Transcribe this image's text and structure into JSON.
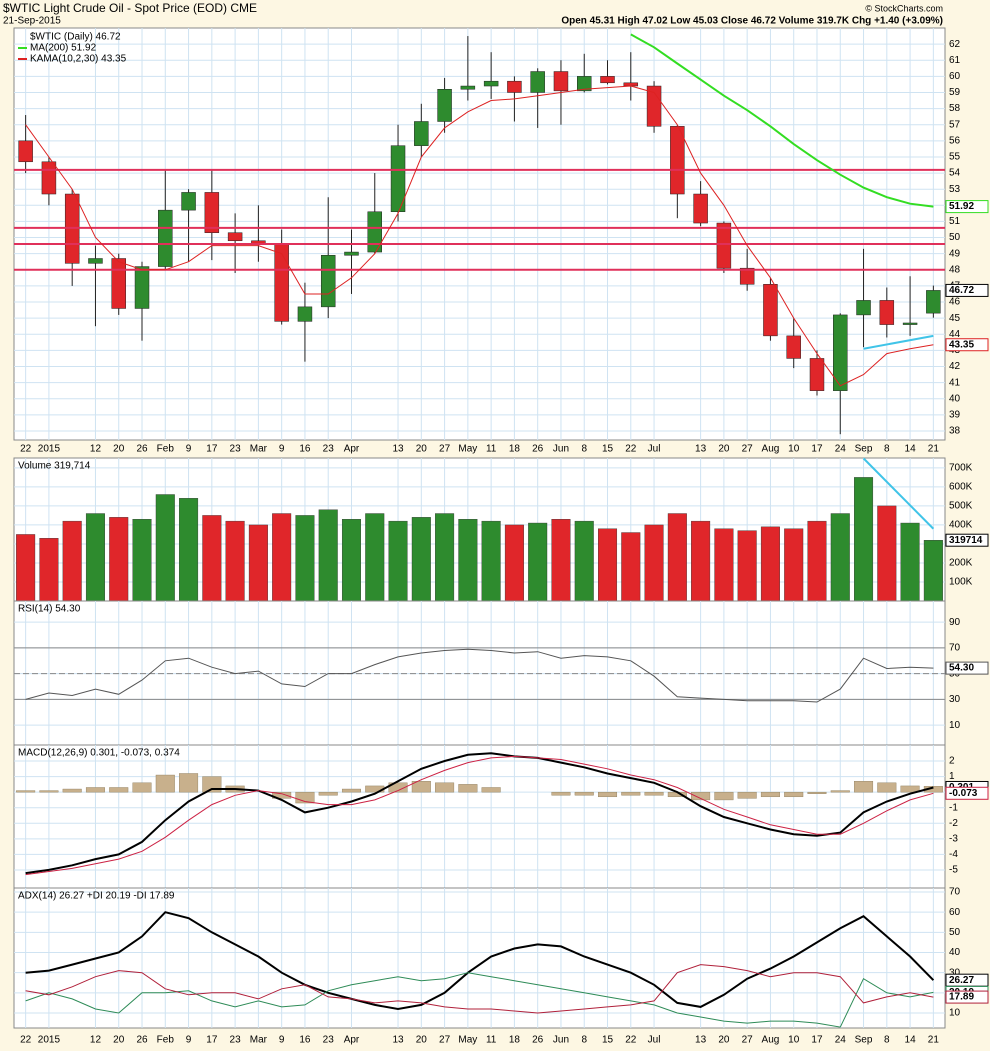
{
  "chart_data": [
    {
      "type": "candlestick",
      "title": "$WTIC Light Crude Oil - Spot Price (EOD) CME",
      "date": "21-Sep-2015",
      "quote": "Open 45.31 High 47.02 Low 45.03 Close 46.72 Volume 319.7K Chg +1.40 (+3.09%)",
      "credit": "© StockCharts.com",
      "price_name": "$WTIC (Daily) 46.72",
      "categories": [
        "22",
        "2015",
        null,
        "12",
        "20",
        "26",
        "Feb",
        "9",
        "17",
        "23",
        "Mar",
        "9",
        "16",
        "23",
        "Apr",
        null,
        "13",
        "20",
        "27",
        "May",
        "11",
        "18",
        "26",
        "Jun",
        "8",
        "15",
        "22",
        "Jul",
        null,
        "13",
        "20",
        "27",
        "Aug",
        "10",
        "17",
        "24",
        "Sep",
        "8",
        "14",
        "21"
      ],
      "open": [
        56.0,
        54.7,
        52.7,
        48.4,
        48.7,
        45.6,
        48.2,
        51.7,
        52.8,
        50.3,
        49.8,
        49.6,
        44.8,
        45.7,
        48.9,
        49.1,
        51.6,
        55.7,
        57.2,
        59.2,
        59.4,
        59.7,
        59.0,
        60.3,
        59.1,
        60.0,
        59.6,
        59.4,
        56.9,
        52.7,
        50.9,
        48.1,
        47.1,
        43.9,
        42.5,
        40.5,
        45.2,
        46.1,
        44.6,
        45.31
      ],
      "high": [
        57.6,
        55.0,
        53.0,
        49.5,
        49.0,
        48.5,
        54.2,
        53.0,
        54.2,
        51.5,
        52.0,
        50.5,
        47.2,
        52.5,
        50.5,
        54.0,
        57.0,
        58.3,
        59.9,
        62.5,
        61.5,
        60.0,
        60.5,
        61.0,
        61.4,
        61.0,
        61.5,
        59.7,
        57.0,
        53.5,
        51.0,
        49.3,
        47.5,
        45.0,
        43.0,
        45.3,
        49.3,
        46.9,
        47.6,
        47.02
      ],
      "low": [
        54.0,
        52.0,
        47.0,
        44.5,
        45.2,
        43.6,
        48.0,
        48.5,
        48.6,
        47.8,
        48.5,
        44.6,
        42.3,
        45.0,
        46.5,
        49.0,
        51.0,
        55.0,
        56.5,
        58.5,
        58.6,
        57.2,
        56.8,
        57.0,
        59.0,
        59.5,
        58.5,
        56.5,
        51.2,
        50.7,
        47.8,
        46.7,
        43.6,
        41.9,
        40.2,
        37.8,
        43.2,
        43.8,
        43.9,
        45.03
      ],
      "close": [
        54.7,
        52.7,
        48.4,
        48.7,
        45.6,
        48.2,
        51.7,
        52.8,
        50.3,
        49.8,
        49.6,
        44.8,
        45.7,
        48.9,
        49.1,
        51.6,
        55.7,
        57.2,
        59.2,
        59.4,
        59.7,
        59.0,
        60.3,
        59.1,
        60.0,
        59.6,
        59.4,
        56.9,
        52.7,
        50.9,
        48.1,
        47.1,
        43.9,
        42.5,
        40.5,
        45.2,
        46.1,
        44.6,
        44.7,
        46.72
      ],
      "up_color": "#2e8b2e",
      "down_color": "#e0262a",
      "series": [
        {
          "name": "MA(200) 51.92",
          "color": "#33dd22",
          "values": [
            null,
            null,
            null,
            null,
            null,
            null,
            null,
            null,
            null,
            null,
            null,
            null,
            null,
            null,
            null,
            null,
            null,
            null,
            null,
            null,
            null,
            null,
            null,
            null,
            null,
            null,
            62.6,
            61.8,
            60.8,
            59.8,
            58.8,
            57.9,
            56.9,
            55.8,
            54.8,
            53.9,
            53.1,
            52.5,
            52.1,
            51.92
          ]
        },
        {
          "name": "KAMA(10,2,30) 43.35",
          "color": "#dd2222",
          "values": [
            57,
            55,
            53,
            50,
            48.5,
            48,
            48,
            48.5,
            49.5,
            49.5,
            49.5,
            49,
            46.5,
            46.5,
            47.5,
            49,
            51.5,
            55,
            56.8,
            57.8,
            58.5,
            58.6,
            58.8,
            59,
            59.2,
            59.3,
            59.4,
            59,
            57,
            54,
            52,
            49.5,
            47.5,
            45,
            42.8,
            40.8,
            41.5,
            42.8,
            43.1,
            43.35
          ]
        }
      ],
      "hlines": {
        "color": "#e0305a",
        "values": [
          54.2,
          50.6,
          49.6,
          48.0
        ]
      },
      "trendline": {
        "color": "#40c4e8",
        "values": [
          null,
          null,
          null,
          null,
          null,
          null,
          null,
          null,
          null,
          null,
          null,
          null,
          null,
          null,
          null,
          null,
          null,
          null,
          null,
          null,
          null,
          null,
          null,
          null,
          null,
          null,
          null,
          null,
          null,
          null,
          null,
          null,
          null,
          null,
          null,
          null,
          43.1,
          null,
          null,
          43.9
        ]
      },
      "ylim": [
        37.44,
        63
      ],
      "yticks": [
        38,
        39,
        40,
        41,
        42,
        43,
        44,
        45,
        46,
        47,
        48,
        49,
        50,
        51,
        52,
        53,
        54,
        55,
        56,
        57,
        58,
        59,
        60,
        61,
        62
      ]
    },
    {
      "type": "bar",
      "label": "Volume 319,714",
      "values": [
        350000,
        330000,
        420000,
        460000,
        440000,
        430000,
        560000,
        540000,
        450000,
        420000,
        400000,
        460000,
        450000,
        480000,
        430000,
        460000,
        420000,
        440000,
        460000,
        430000,
        420000,
        400000,
        410000,
        430000,
        420000,
        380000,
        360000,
        400000,
        460000,
        420000,
        380000,
        370000,
        390000,
        380000,
        420000,
        460000,
        650000,
        500000,
        410000,
        319714
      ],
      "trendline": {
        "color": "#40c4e8",
        "values": [
          null,
          null,
          null,
          null,
          null,
          null,
          null,
          null,
          null,
          null,
          null,
          null,
          null,
          null,
          null,
          null,
          null,
          null,
          null,
          null,
          null,
          null,
          null,
          null,
          null,
          null,
          null,
          null,
          null,
          null,
          null,
          null,
          null,
          null,
          null,
          null,
          750000,
          null,
          null,
          380000
        ]
      },
      "ylim": [
        0,
        752000
      ],
      "yticks": [
        {
          "value": 100000,
          "label": "100K"
        },
        {
          "value": 200000,
          "label": "200K"
        },
        {
          "value": 300000,
          "label": "300K"
        },
        {
          "value": 400000,
          "label": "400K"
        },
        {
          "value": 500000,
          "label": "500K"
        },
        {
          "value": 600000,
          "label": "600K"
        },
        {
          "value": 700000,
          "label": "700K"
        }
      ]
    },
    {
      "type": "line",
      "label": "RSI(14) 54.30",
      "levels": [
        30,
        50,
        70
      ],
      "series": [
        {
          "color": "#555555",
          "tag": "54.30",
          "values": [
            30,
            35,
            33,
            38,
            34,
            45,
            60,
            62,
            55,
            50,
            52,
            42,
            40,
            50,
            50,
            57,
            63,
            66,
            68,
            69,
            68,
            66,
            67,
            62,
            64,
            63,
            60,
            48,
            32,
            31,
            30,
            29,
            29,
            29,
            28,
            38,
            62,
            54,
            55,
            54.3
          ]
        }
      ],
      "ylim": [
        -5.4,
        106.4
      ],
      "yticks": [
        10,
        30,
        50,
        70,
        90
      ]
    },
    {
      "type": "macd",
      "label": "MACD(12,26,9) 0.301, -0.073, 0.374",
      "histogram": {
        "color": "#c8b08c",
        "values": [
          0.1,
          0.1,
          0.2,
          0.3,
          0.3,
          0.6,
          1.1,
          1.2,
          1.0,
          0.4,
          0,
          -0.4,
          -0.7,
          -0.2,
          0.2,
          0.4,
          0.6,
          0.7,
          0.6,
          0.5,
          0.3,
          0,
          0,
          -0.2,
          -0.2,
          -0.3,
          -0.2,
          -0.2,
          -0.3,
          -0.5,
          -0.5,
          -0.4,
          -0.3,
          -0.3,
          -0.1,
          0.1,
          0.7,
          0.6,
          0.4,
          0.374
        ]
      },
      "series": [
        {
          "color": "#000000",
          "values": [
            -5.2,
            -5,
            -4.7,
            -4.3,
            -4,
            -3.2,
            -1.8,
            -0.6,
            0.2,
            0.2,
            0.1,
            -0.5,
            -1.3,
            -1,
            -0.6,
            -0.1,
            0.7,
            1.5,
            2,
            2.4,
            2.5,
            2.3,
            2.2,
            1.9,
            1.6,
            1.2,
            0.9,
            0.6,
            0,
            -0.9,
            -1.6,
            -2,
            -2.4,
            -2.7,
            -2.8,
            -2.6,
            -1.3,
            -0.6,
            -0.1,
            0.301
          ]
        },
        {
          "color": "#cc2244",
          "values": [
            -5.3,
            -5.1,
            -4.9,
            -4.6,
            -4.3,
            -3.8,
            -2.9,
            -1.8,
            -0.8,
            -0.2,
            0.1,
            -0.1,
            -0.6,
            -0.8,
            -0.8,
            -0.5,
            0.1,
            0.8,
            1.4,
            1.9,
            2.2,
            2.3,
            2.2,
            2.1,
            1.8,
            1.5,
            1.1,
            0.8,
            0.3,
            -0.4,
            -1.1,
            -1.6,
            -2.1,
            -2.4,
            -2.7,
            -2.7,
            -2,
            -1.2,
            -0.5,
            -0.073
          ]
        }
      ],
      "ylim": [
        -6.16,
        3.03
      ],
      "yticks": [
        -5,
        -4,
        -3,
        -2,
        -1,
        0,
        1,
        2
      ]
    },
    {
      "type": "line",
      "label": "ADX(14) 26.27 +DI 20.19 -DI 17.89",
      "series": [
        {
          "color": "#000000",
          "values": [
            30,
            31,
            34,
            37,
            40,
            48,
            60,
            57,
            50,
            44,
            38,
            30,
            24,
            20,
            17,
            14,
            12,
            14,
            20,
            30,
            38,
            42,
            44,
            43,
            38,
            34,
            30,
            24,
            15,
            13,
            19,
            27,
            32,
            38,
            45,
            52,
            58,
            48,
            38,
            26.27
          ]
        },
        {
          "color": "#2e8b57",
          "values": [
            16,
            20,
            17,
            12,
            10,
            20,
            20,
            21,
            16,
            13,
            16,
            13,
            14,
            21,
            24,
            26,
            28,
            26,
            27,
            30,
            28,
            26,
            24,
            22,
            20,
            18,
            16,
            14,
            10,
            8,
            6,
            5,
            6,
            6,
            5,
            3,
            27,
            20,
            18,
            20.19
          ]
        },
        {
          "color": "#b0203a",
          "values": [
            21,
            19,
            23,
            28,
            31,
            30,
            22,
            19,
            20,
            20,
            17,
            22,
            24,
            18,
            17,
            15,
            16,
            15,
            13,
            12,
            12,
            11,
            10,
            11,
            12,
            13,
            14,
            16,
            30,
            34,
            33,
            31,
            28,
            30,
            30,
            28,
            15,
            18,
            20,
            17.89
          ]
        }
      ],
      "ylim": [
        2.56,
        71.98
      ],
      "yticks": [
        10,
        20,
        30,
        40,
        50,
        60,
        70
      ]
    }
  ]
}
